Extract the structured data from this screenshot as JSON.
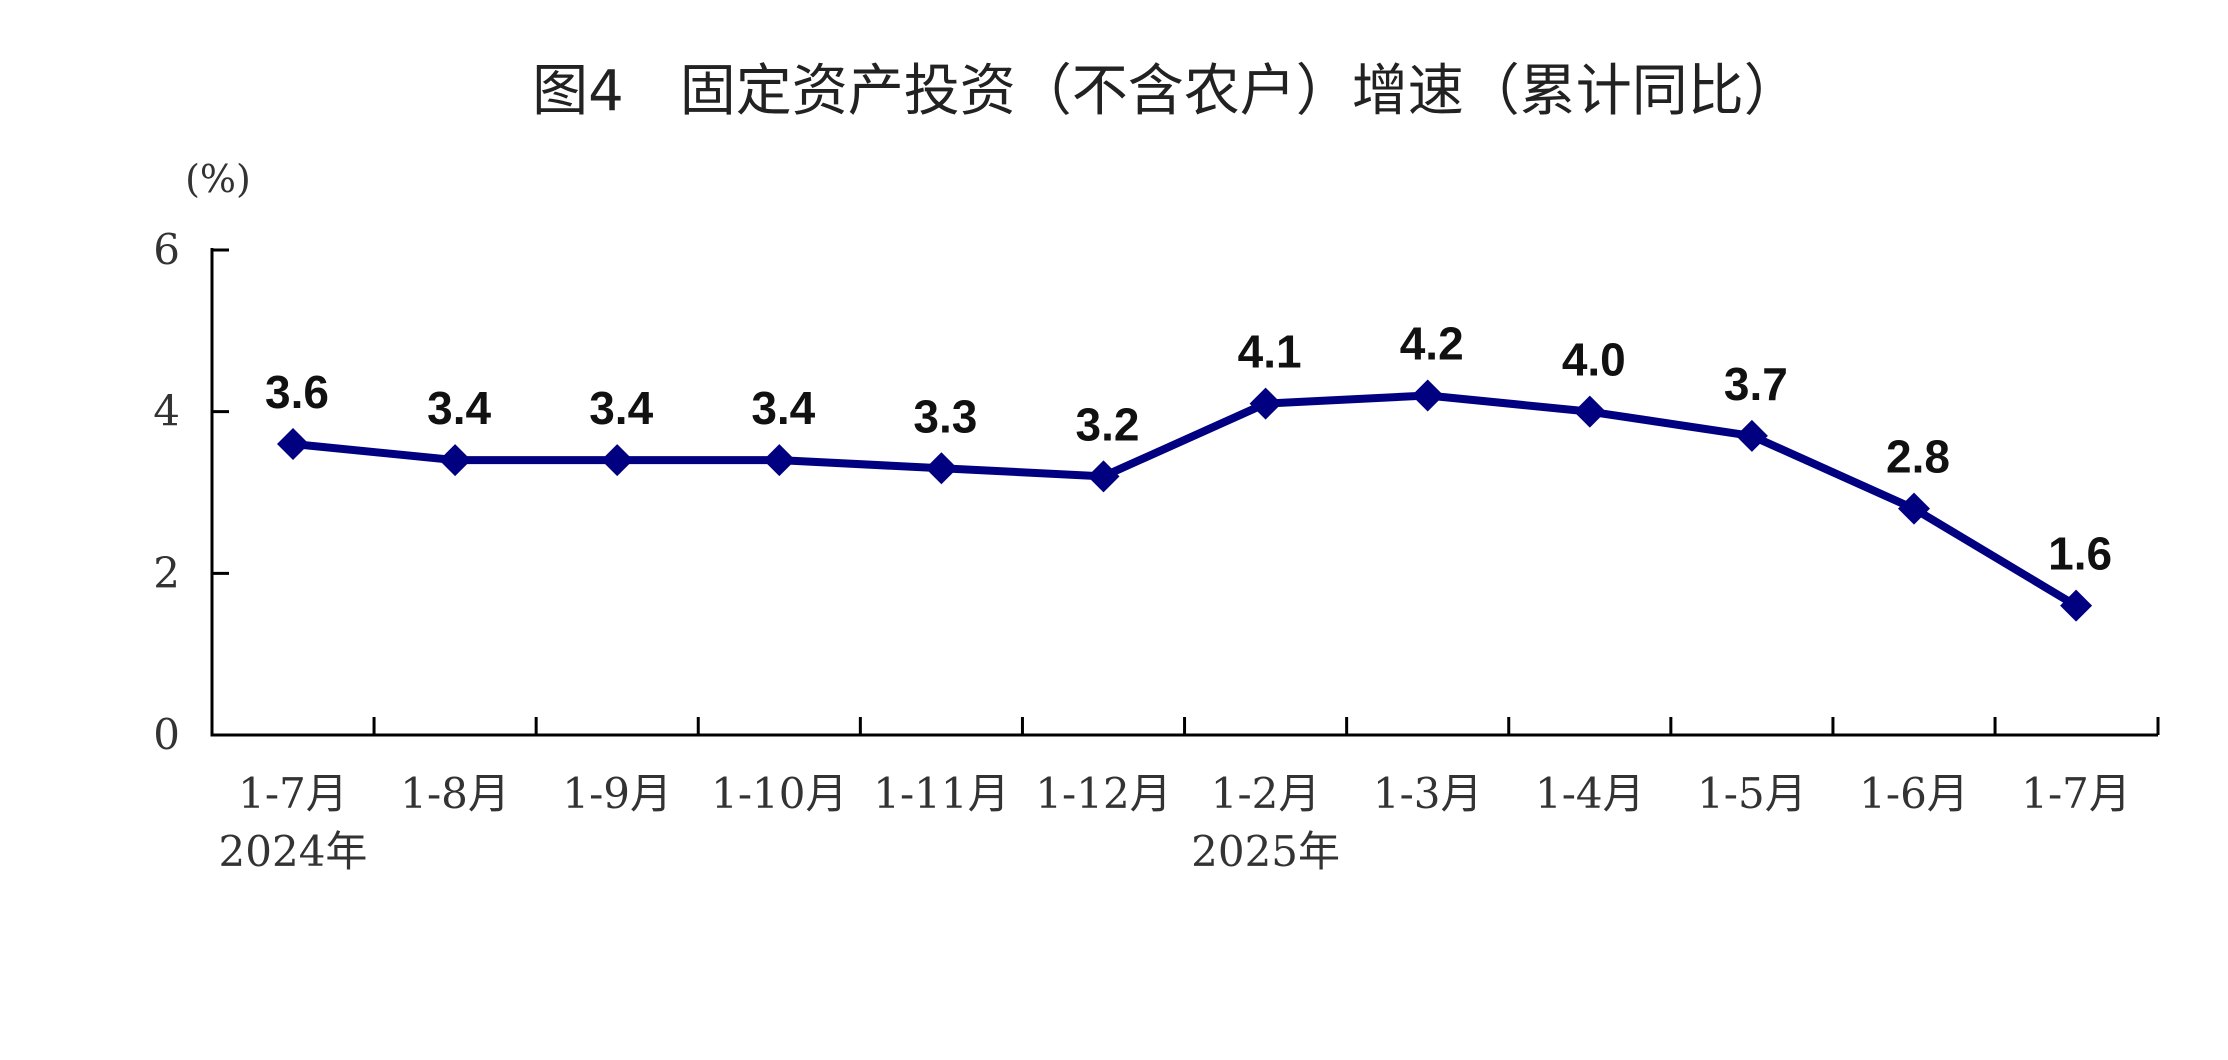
{
  "chart_data": {
    "type": "line",
    "title": "图4　固定资产投资（不含农户）增速（累计同比）",
    "unit": "(%)",
    "xlabel": "",
    "ylabel": "",
    "ylim": [
      0,
      6
    ],
    "yticks": [
      0,
      2,
      4,
      6
    ],
    "categories": [
      "1-7月",
      "1-8月",
      "1-9月",
      "1-10月",
      "1-11月",
      "1-12月",
      "1-2月",
      "1-3月",
      "1-4月",
      "1-5月",
      "1-6月",
      "1-7月"
    ],
    "year_labels": [
      {
        "category_index": 0,
        "label": "2024年"
      },
      {
        "category_index": 6,
        "label": "2025年"
      }
    ],
    "series": [
      {
        "values": [
          3.6,
          3.4,
          3.4,
          3.4,
          3.3,
          3.2,
          4.1,
          4.2,
          4.0,
          3.7,
          2.8,
          1.6
        ],
        "labels": [
          "3.6",
          "3.4",
          "3.4",
          "3.4",
          "3.3",
          "3.2",
          "4.1",
          "4.2",
          "4.0",
          "3.7",
          "2.8",
          "1.6"
        ],
        "color": "#000080",
        "marker": "diamond"
      }
    ],
    "grid": false,
    "legend": "none"
  }
}
